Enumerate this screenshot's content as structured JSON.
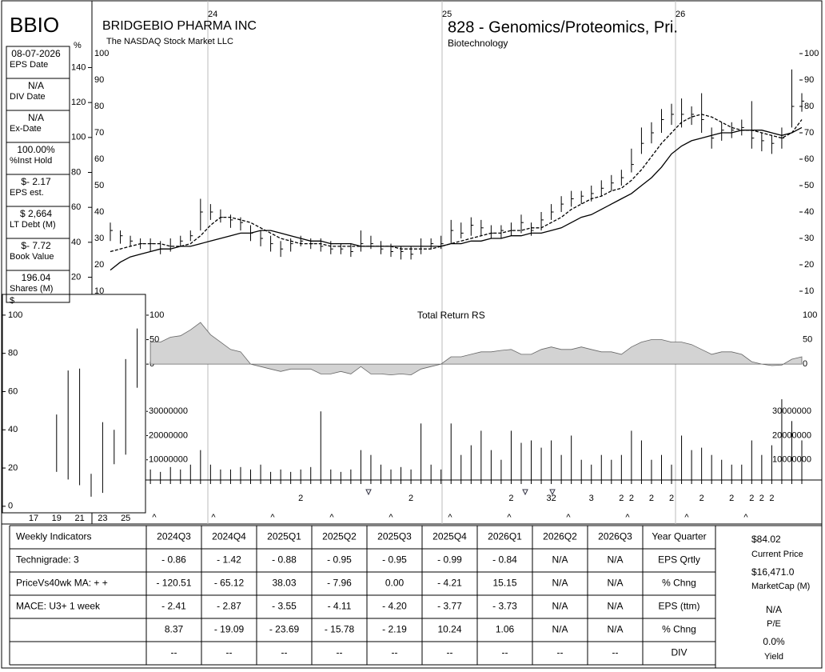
{
  "header": {
    "ticker": "BBIO",
    "company": "BRIDGEBIO PHARMA INC",
    "exchange": "The NASDAQ Stock Market LLC",
    "group": "828 - Genomics/Proteomics, Pri.",
    "industry": "Biotechnology"
  },
  "sidebar": [
    {
      "value": "08-07-2026",
      "label": "EPS Date"
    },
    {
      "value": "N/A",
      "label": "DIV Date"
    },
    {
      "value": "N/A",
      "label": "Ex-Date"
    },
    {
      "value": "100.00%",
      "label": "%Inst Hold"
    },
    {
      "value": "$- 2.17",
      "label": "EPS est."
    },
    {
      "value": "$ 2,664",
      "label": "LT Debt (M)"
    },
    {
      "value": "$- 7.72",
      "label": "Book Value"
    },
    {
      "value": "196.04",
      "label": "Shares (M)"
    }
  ],
  "chart_data": [
    {
      "type": "ohlc",
      "year_labels": [
        "24",
        "25",
        "26"
      ],
      "color": "#000000",
      "high": [
        36,
        33,
        31,
        30,
        30,
        29,
        30,
        31,
        33,
        45,
        43,
        41,
        39,
        38,
        35,
        33,
        31,
        29,
        30,
        31,
        30,
        30,
        29,
        28,
        28,
        33,
        31,
        29,
        28,
        27,
        27,
        30,
        30,
        31,
        37,
        36,
        38,
        37,
        35,
        35,
        36,
        39,
        36,
        40,
        43,
        46,
        48,
        48,
        50,
        52,
        54,
        56,
        64,
        72,
        74,
        79,
        81,
        83,
        80,
        85,
        72,
        74,
        74,
        75,
        82,
        70,
        69,
        72,
        94,
        85
      ],
      "low": [
        29,
        28,
        27,
        26,
        25,
        24,
        25,
        27,
        29,
        33,
        37,
        36,
        34,
        33,
        29,
        27,
        25,
        23,
        25,
        27,
        26,
        25,
        24,
        24,
        23,
        25,
        26,
        24,
        23,
        22,
        22,
        24,
        26,
        26,
        28,
        30,
        31,
        31,
        30,
        30,
        31,
        32,
        31,
        33,
        37,
        40,
        42,
        43,
        44,
        46,
        48,
        50,
        55,
        62,
        66,
        70,
        73,
        72,
        73,
        70,
        64,
        67,
        68,
        69,
        64,
        63,
        62,
        64,
        72,
        78
      ],
      "close": [
        33,
        31,
        29,
        28,
        28,
        26,
        27,
        29,
        31,
        40,
        40,
        38,
        37,
        36,
        32,
        30,
        28,
        26,
        28,
        29,
        28,
        27,
        26,
        26,
        25,
        28,
        28,
        26,
        25,
        25,
        24,
        27,
        28,
        28,
        33,
        32,
        35,
        34,
        32,
        33,
        33,
        36,
        33,
        37,
        40,
        43,
        45,
        46,
        47,
        49,
        51,
        53,
        58,
        66,
        70,
        75,
        77,
        77,
        77,
        75,
        68,
        71,
        71,
        72,
        68,
        67,
        66,
        68,
        80,
        82
      ],
      "lines": [
        {
          "style": "dashed",
          "values": [
            25,
            26,
            27,
            28,
            28,
            28,
            27,
            27,
            28,
            31,
            35,
            38,
            38,
            37,
            36,
            34,
            32,
            30,
            29,
            28,
            28,
            28,
            27,
            27,
            27,
            27,
            27,
            27,
            27,
            26,
            26,
            26,
            26,
            27,
            28,
            29,
            30,
            31,
            32,
            32,
            33,
            33,
            34,
            34,
            36,
            38,
            41,
            43,
            45,
            46,
            48,
            49,
            52,
            56,
            61,
            66,
            70,
            74,
            76,
            77,
            76,
            74,
            72,
            71,
            71,
            70,
            69,
            68,
            70,
            75
          ]
        },
        {
          "style": "solid",
          "values": [
            18,
            21,
            23,
            24,
            25,
            26,
            26,
            27,
            27,
            28,
            29,
            30,
            31,
            32,
            32,
            33,
            33,
            32,
            31,
            30,
            29,
            29,
            28,
            28,
            28,
            27,
            27,
            27,
            27,
            27,
            27,
            27,
            27,
            27,
            28,
            28,
            29,
            29,
            30,
            30,
            31,
            31,
            32,
            32,
            33,
            34,
            36,
            38,
            39,
            41,
            43,
            45,
            47,
            50,
            53,
            57,
            62,
            65,
            67,
            68,
            69,
            70,
            70,
            71,
            71,
            71,
            70,
            69,
            70,
            72
          ]
        }
      ],
      "ylim": [
        10,
        100
      ],
      "yticks": [
        100,
        90,
        80,
        70,
        60,
        50,
        40,
        30,
        20,
        10
      ],
      "pct_axis_label": "%",
      "pct_lim": [
        12,
        148
      ],
      "pct_ticks": [
        140,
        120,
        100,
        80,
        60,
        40,
        20
      ]
    },
    {
      "type": "area",
      "title": "Total Return RS",
      "color": "#d3d3d3",
      "values": [
        null,
        null,
        null,
        null,
        45,
        45,
        55,
        58,
        70,
        85,
        60,
        45,
        30,
        25,
        0,
        -5,
        -10,
        -15,
        -10,
        -10,
        -10,
        -20,
        -20,
        -15,
        -20,
        -5,
        -20,
        -20,
        -22,
        -20,
        -22,
        -10,
        -5,
        0,
        15,
        15,
        20,
        25,
        25,
        28,
        30,
        20,
        20,
        30,
        35,
        30,
        30,
        35,
        30,
        25,
        25,
        20,
        35,
        45,
        50,
        50,
        45,
        45,
        40,
        30,
        20,
        25,
        25,
        20,
        5,
        0,
        -3,
        -2,
        10,
        15
      ],
      "ylim": [
        -57,
        131
      ],
      "yticks": [
        100,
        50,
        0
      ]
    },
    {
      "type": "volume",
      "color": "#000000",
      "values": [
        null,
        null,
        null,
        null,
        6000000,
        5000000,
        7000000,
        6000000,
        8000000,
        14000000,
        8000000,
        6000000,
        6000000,
        7000000,
        6000000,
        8000000,
        5000000,
        6000000,
        5000000,
        6000000,
        7000000,
        30000000,
        6000000,
        5000000,
        6000000,
        14000000,
        12000000,
        8000000,
        6000000,
        7000000,
        6000000,
        25000000,
        8000000,
        6000000,
        25000000,
        12000000,
        16000000,
        22000000,
        14000000,
        10000000,
        22000000,
        17000000,
        18000000,
        15000000,
        18000000,
        12000000,
        20000000,
        10000000,
        8000000,
        12000000,
        10000000,
        12000000,
        22000000,
        18000000,
        10000000,
        12000000,
        8000000,
        20000000,
        14000000,
        15000000,
        12000000,
        10000000,
        8000000,
        8000000,
        18000000,
        12000000,
        16000000,
        35000000,
        26000000,
        18000000
      ],
      "ylim": [
        0,
        38000000
      ],
      "yticks": [
        30000000,
        20000000,
        10000000
      ],
      "notes": [
        null,
        null,
        null,
        null,
        null,
        null,
        null,
        null,
        null,
        null,
        null,
        null,
        null,
        null,
        null,
        null,
        null,
        null,
        null,
        "2",
        null,
        null,
        null,
        null,
        null,
        null,
        null,
        null,
        null,
        null,
        "2",
        null,
        null,
        null,
        null,
        null,
        null,
        null,
        null,
        null,
        "2",
        null,
        null,
        null,
        "32",
        null,
        null,
        null,
        "3",
        null,
        null,
        "2",
        "2",
        null,
        "2",
        null,
        "2",
        null,
        null,
        "2",
        null,
        null,
        "2",
        null,
        "2",
        "2",
        "2",
        null,
        null,
        null
      ],
      "quarter_marks": [
        "^",
        "^",
        "^",
        "^",
        "^",
        "^",
        "^",
        "^",
        "^",
        "^",
        "^"
      ]
    },
    {
      "type": "range",
      "y_axis_label": "$",
      "color": "#000000",
      "categories": [
        "17",
        null,
        "19",
        null,
        "21",
        null,
        "23",
        null,
        "25",
        null
      ],
      "high": [
        null,
        null,
        48,
        71,
        72,
        17,
        44,
        40,
        77,
        93
      ],
      "low": [
        null,
        null,
        18,
        14,
        11,
        5,
        7,
        22,
        27,
        62
      ],
      "ylim": [
        -3,
        110
      ],
      "yticks": [
        100,
        80,
        60,
        40,
        20,
        0
      ]
    }
  ],
  "table": {
    "header": [
      "Weekly Indicators",
      "2024Q3",
      "2024Q4",
      "2025Q1",
      "2025Q2",
      "2025Q3",
      "2025Q4",
      "2026Q1",
      "2026Q2",
      "2026Q3",
      "Year Quarter"
    ],
    "rows": [
      [
        "Technigrade: 3",
        "- 0.86",
        "- 1.42",
        "- 0.88",
        "- 0.95",
        "- 0.95",
        "- 0.99",
        "- 0.84",
        "N/A",
        "N/A",
        "EPS Qrtly"
      ],
      [
        "PriceVs40wk MA:  + +",
        "- 120.51",
        "- 65.12",
        "38.03",
        "- 7.96",
        "0.00",
        "- 4.21",
        "15.15",
        "N/A",
        "N/A",
        "% Chng"
      ],
      [
        "MACE: U3+  1 week",
        "- 2.41",
        "- 2.87",
        "- 3.55",
        "- 4.11",
        "- 4.20",
        "- 3.77",
        "- 3.73",
        "N/A",
        "N/A",
        "EPS (ttm)"
      ],
      [
        null,
        "8.37",
        "- 19.09",
        "- 23.69",
        "- 15.78",
        "- 2.19",
        "10.24",
        "1.06",
        "N/A",
        "N/A",
        "% Chng"
      ],
      [
        null,
        "--",
        "--",
        "--",
        "--",
        "--",
        "--",
        "--",
        "--",
        "--",
        "DIV"
      ]
    ]
  },
  "summary": [
    {
      "value": "$84.02",
      "label": "Current Price"
    },
    {
      "value": "$16,471.0",
      "label": "MarketCap (M)"
    },
    {
      "value": "N/A",
      "label": "P/E"
    },
    {
      "value": "0.0%",
      "label": "Yield"
    }
  ]
}
